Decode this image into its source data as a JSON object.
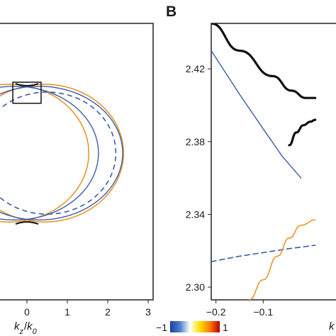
{
  "panel_b_label": "B",
  "xlabel_a": {
    "var": "k",
    "sub1": "z",
    "slash": "/",
    "var2": "k",
    "sub2": "0"
  },
  "xlabel_b_partial": "k",
  "colorbar": {
    "min_label": "−1",
    "max_label": "1",
    "colors": [
      "#1f3f9e",
      "#4f7fd0",
      "#ffffff",
      "#ffe000",
      "#ff7a00",
      "#b30000"
    ]
  },
  "colors": {
    "blue": "#3b5bab",
    "orange": "#e8901c",
    "black": "#111111",
    "yellow": "#f5c400"
  },
  "chart_data": [
    {
      "type": "line",
      "panel": "A",
      "xlim": [
        -3,
        3
      ],
      "ylim": [
        -3,
        3
      ],
      "x_ticks": [
        "0",
        "1",
        "2",
        "3"
      ],
      "x_tick_values": [
        0,
        1,
        2,
        3
      ],
      "zoom_box": {
        "x": [
          -0.35,
          0.35
        ],
        "y": [
          2.3,
          2.44
        ]
      },
      "series": [
        {
          "curve": "orange ellipse",
          "center": [
            0.43,
            0
          ],
          "semi_axes": [
            1.96,
            2.37
          ],
          "style": "solid"
        },
        {
          "curve": "orange ellipse",
          "center": [
            -0.43,
            0
          ],
          "semi_axes": [
            1.96,
            2.37
          ],
          "style": "solid"
        },
        {
          "curve": "blue ellipse",
          "center": [
            0.3,
            0
          ],
          "semi_axes": [
            2.07,
            2.3
          ],
          "style": "solid"
        },
        {
          "curve": "blue ellipse",
          "center": [
            -0.3,
            0
          ],
          "semi_axes": [
            2.07,
            2.3
          ],
          "style": "solid"
        },
        {
          "curve": "blue dashed ellipse",
          "center": [
            0.5,
            0
          ],
          "semi_axes": [
            1.7,
            2.1
          ],
          "style": "dashed"
        }
      ]
    },
    {
      "type": "line",
      "panel": "B",
      "xlim": [
        -0.21,
        0.06
      ],
      "ylim": [
        2.293,
        2.445
      ],
      "x_ticks": [
        "−0.2",
        "−0.1"
      ],
      "x_tick_values": [
        -0.2,
        -0.1
      ],
      "y_ticks": [
        "2.30",
        "2.34",
        "2.38",
        "2.42"
      ],
      "y_tick_values": [
        2.3,
        2.34,
        2.38,
        2.42
      ],
      "series": [
        {
          "curve": "upper black branch",
          "points": [
            [
              -0.21,
              2.445
            ],
            [
              -0.15,
              2.43
            ],
            [
              -0.08,
              2.416
            ],
            [
              -0.04,
              2.408
            ],
            [
              -0.01,
              2.404
            ],
            [
              0.01,
              2.404
            ]
          ]
        },
        {
          "curve": "lower black branch",
          "points": [
            [
              -0.045,
              2.378
            ],
            [
              -0.03,
              2.385
            ],
            [
              -0.015,
              2.389
            ],
            [
              0.0,
              2.391
            ],
            [
              0.01,
              2.392
            ]
          ]
        },
        {
          "curve": "blue solid line",
          "points": [
            [
              -0.21,
              2.43
            ],
            [
              -0.15,
              2.406
            ],
            [
              -0.1,
              2.387
            ],
            [
              -0.06,
              2.372
            ],
            [
              -0.02,
              2.36
            ]
          ]
        },
        {
          "curve": "blue dashed line",
          "points": [
            [
              -0.21,
              2.314
            ],
            [
              -0.15,
              2.317
            ],
            [
              -0.1,
              2.319
            ],
            [
              -0.05,
              2.321
            ],
            [
              0.01,
              2.323
            ]
          ]
        },
        {
          "curve": "orange-yellow line",
          "points": [
            [
              -0.13,
              2.293
            ],
            [
              -0.1,
              2.304
            ],
            [
              -0.07,
              2.317
            ],
            [
              -0.045,
              2.327
            ],
            [
              -0.02,
              2.334
            ],
            [
              0.01,
              2.337
            ]
          ]
        }
      ]
    }
  ]
}
